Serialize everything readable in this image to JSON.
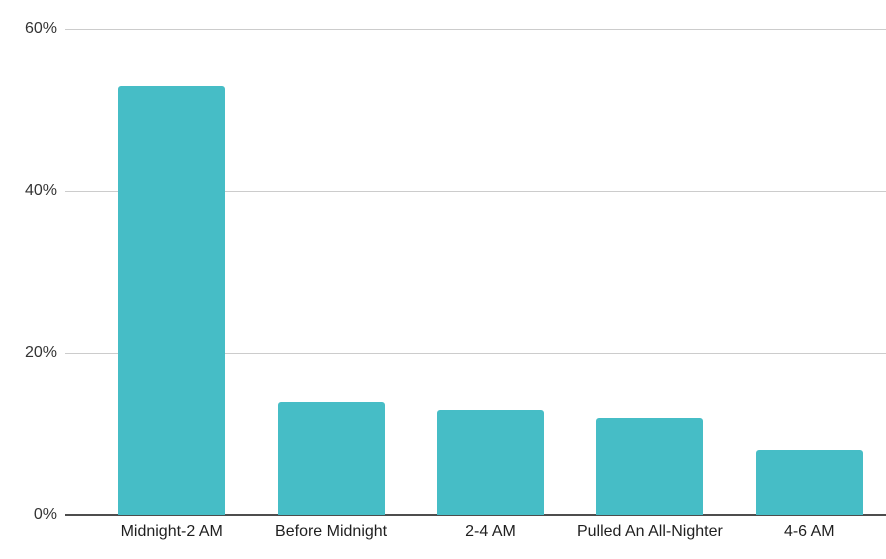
{
  "chart_data": {
    "type": "bar",
    "title": "",
    "categories": [
      "Midnight-2 AM",
      "Before Midnight",
      "2-4 AM",
      "Pulled An All-Nighter",
      "4-6 AM"
    ],
    "values": [
      53,
      14,
      13,
      12,
      8
    ],
    "value_unit": "%",
    "xlabel": "",
    "ylabel": "",
    "ylim": [
      0,
      60
    ],
    "y_ticks": [
      0,
      20,
      40,
      60
    ],
    "y_tick_labels": [
      "0%",
      "20%",
      "40%",
      "60%"
    ],
    "grid": true,
    "legend": "none",
    "colors": {
      "bar": "#46bdc6",
      "gridline": "#cccccc",
      "baseline": "#4d4d4d",
      "y_label": "#333333",
      "x_label": "#1f1f1f",
      "background": "#ffffff"
    }
  }
}
